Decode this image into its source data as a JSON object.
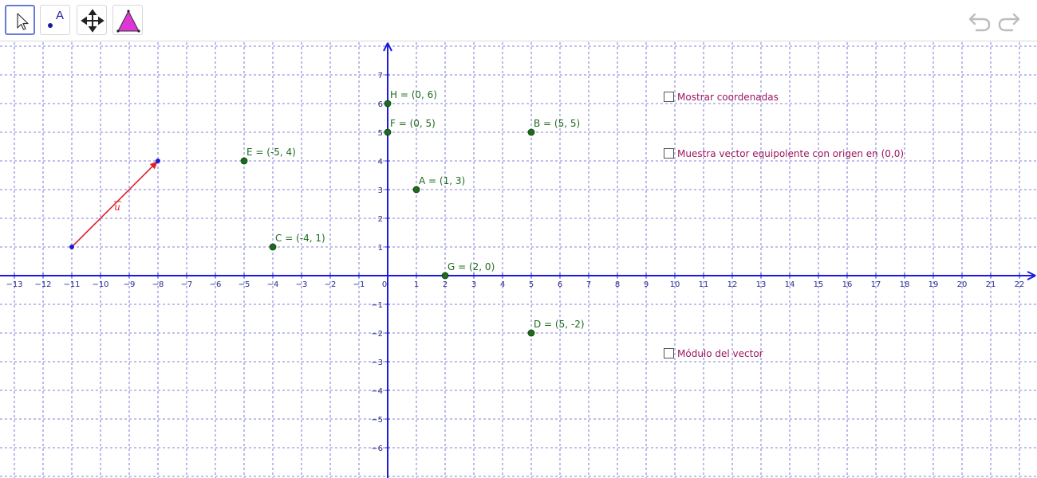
{
  "toolbar": {
    "tools": [
      {
        "name": "move-tool",
        "icon": "pointer-arrow-icon",
        "active": true
      },
      {
        "name": "point-tool",
        "icon": "point-icon",
        "label": "A"
      },
      {
        "name": "move-graphics-view-tool",
        "icon": "move-cross-arrows-icon"
      },
      {
        "name": "triangle-tool",
        "icon": "triangle-icon"
      }
    ],
    "undo_icon": "undo-icon",
    "redo_icon": "redo-icon"
  },
  "axes": {
    "x_ticks": [
      "−13",
      "−12",
      "−11",
      "−10",
      "−9",
      "−8",
      "−7",
      "−6",
      "−5",
      "−4",
      "−3",
      "−2",
      "−1",
      "0",
      "1",
      "2",
      "3",
      "4",
      "5",
      "6",
      "7",
      "8",
      "9",
      "10",
      "11",
      "12",
      "13",
      "14",
      "15",
      "16",
      "17",
      "18",
      "19",
      "20",
      "21",
      "22"
    ],
    "y_ticks_pos": [
      "1",
      "2",
      "3",
      "4",
      "5",
      "6",
      "7"
    ],
    "y_ticks_neg": [
      "−1",
      "−2",
      "−3",
      "−4",
      "−5",
      "−6"
    ],
    "axis_color": "#1a1adb",
    "grid_color": "#3a3ac8"
  },
  "points": [
    {
      "id": "H",
      "label": "H = (0, 6)",
      "x": 0,
      "y": 6
    },
    {
      "id": "F",
      "label": "F = (0, 5)",
      "x": 0,
      "y": 5
    },
    {
      "id": "B",
      "label": "B = (5, 5)",
      "x": 5,
      "y": 5
    },
    {
      "id": "E",
      "label": "E = (-5, 4)",
      "x": -5,
      "y": 4
    },
    {
      "id": "A",
      "label": "A = (1, 3)",
      "x": 1,
      "y": 3
    },
    {
      "id": "C",
      "label": "C = (-4, 1)",
      "x": -4,
      "y": 1
    },
    {
      "id": "G",
      "label": "G = (2, 0)",
      "x": 2,
      "y": 0
    },
    {
      "id": "D",
      "label": "D = (5, -2)",
      "x": 5,
      "y": -2
    }
  ],
  "vector": {
    "label": "u",
    "from": [
      -11,
      1
    ],
    "to": [
      -8,
      4
    ],
    "color": "#e0202a",
    "point_color": "#1a1adb"
  },
  "checkboxes": [
    {
      "label": "Mostrar coordenadas",
      "checked": false
    },
    {
      "label": "Muestra vector equipolente con origen en (0,0)",
      "checked": false
    },
    {
      "label": "Módulo del vector",
      "checked": false
    }
  ],
  "colors": {
    "point_fill": "#1d6b1d",
    "label_color": "#1f6b1f",
    "checkbox_label": "#9b1560",
    "active_tool_border": "#6a7ad8"
  }
}
